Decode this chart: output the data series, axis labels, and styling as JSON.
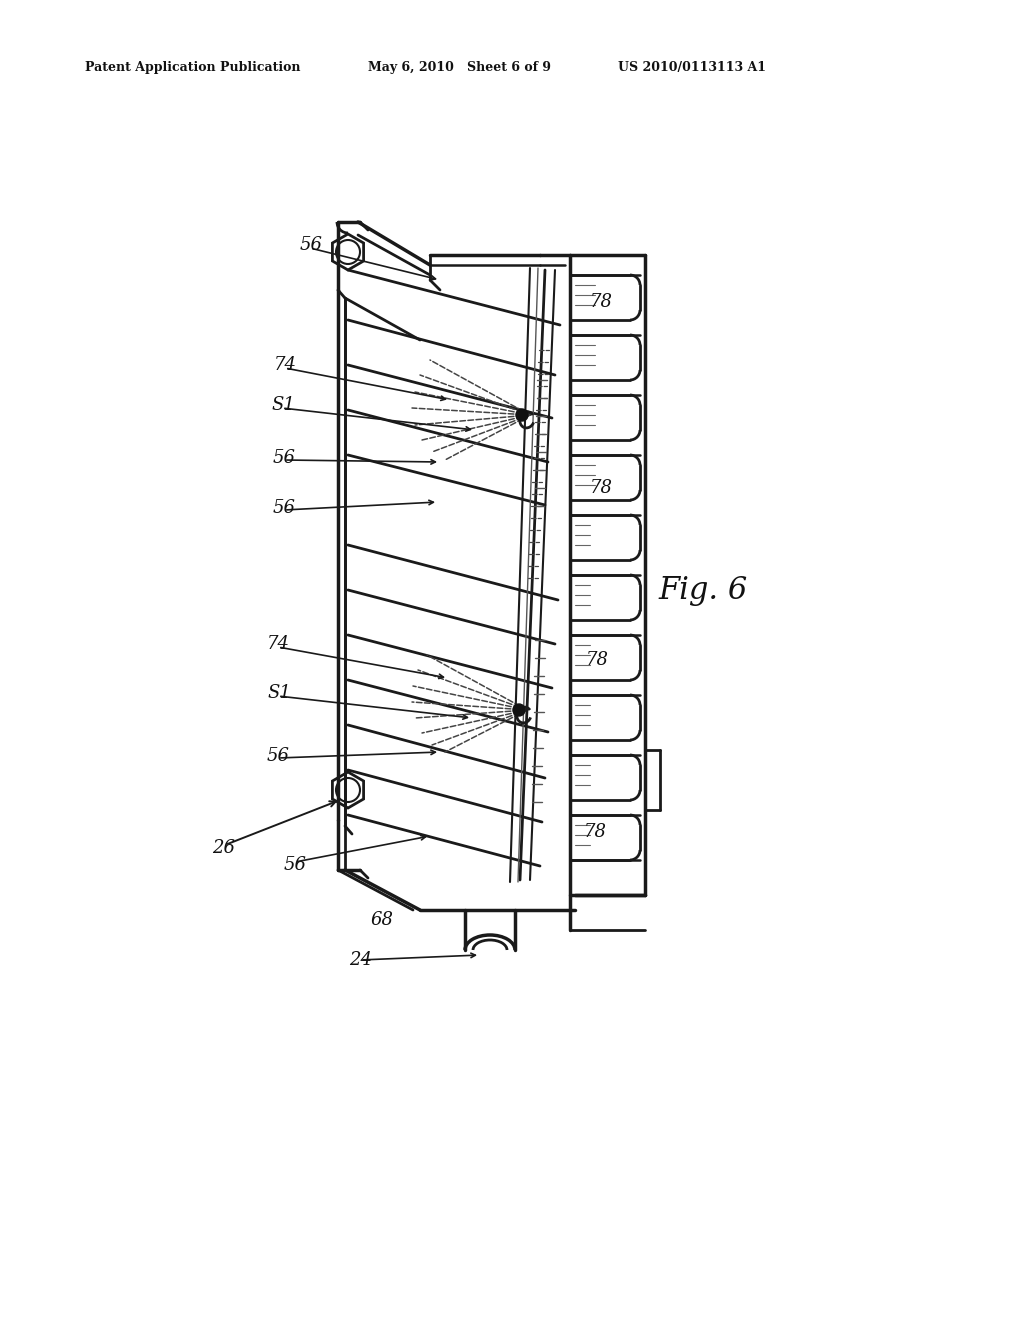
{
  "bg_color": "#ffffff",
  "header_left": "Patent Application Publication",
  "header_mid": "May 6, 2010   Sheet 6 of 9",
  "header_right": "US 2010/0113113 A1",
  "fig_label": "Fig. 6",
  "line_color": "#1a1a1a",
  "dash_color": "#444444",
  "text_color": "#111111",
  "header_fontsize": 9,
  "fig_label_fontsize": 22,
  "ref_fontsize": 13
}
